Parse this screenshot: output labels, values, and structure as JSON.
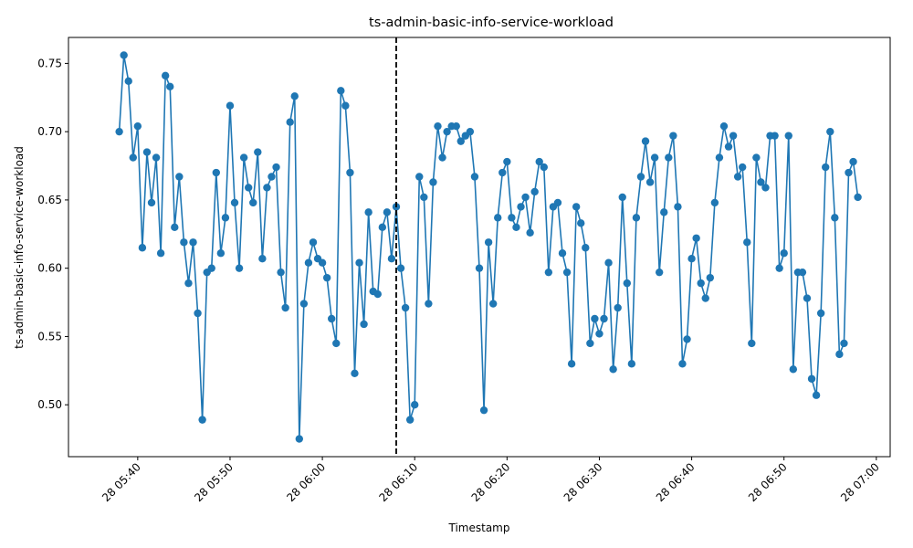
{
  "chart_data": {
    "type": "line",
    "title": "ts-admin-basic-info-service-workload",
    "xlabel": "Timestamp",
    "ylabel": "ts-admin-basic-info-service-workload",
    "ylim": [
      0.462,
      0.769
    ],
    "x_range": [
      "05:32:30",
      "07:01:30"
    ],
    "x_ticks": [
      {
        "time": "05:40",
        "label": "28 05:40"
      },
      {
        "time": "05:50",
        "label": "28 05:50"
      },
      {
        "time": "06:00",
        "label": "28 06:00"
      },
      {
        "time": "06:10",
        "label": "28 06:10"
      },
      {
        "time": "06:20",
        "label": "28 06:20"
      },
      {
        "time": "06:30",
        "label": "28 06:30"
      },
      {
        "time": "06:40",
        "label": "28 06:40"
      },
      {
        "time": "06:50",
        "label": "28 06:50"
      },
      {
        "time": "07:00",
        "label": "28 07:00"
      }
    ],
    "y_ticks": [
      {
        "value": 0.5,
        "label": "0.50"
      },
      {
        "value": 0.55,
        "label": "0.55"
      },
      {
        "value": 0.6,
        "label": "0.60"
      },
      {
        "value": 0.65,
        "label": "0.65"
      },
      {
        "value": 0.7,
        "label": "0.70"
      },
      {
        "value": 0.75,
        "label": "0.75"
      }
    ],
    "vline_time": "06:08",
    "grid": false,
    "legend": false,
    "line_color": "#1f77b4",
    "vline_color": "#000000",
    "series": [
      {
        "x_start": "05:38",
        "step_seconds": 30,
        "values": [
          0.7,
          0.756,
          0.737,
          0.681,
          0.704,
          0.615,
          0.685,
          0.648,
          0.681,
          0.611,
          0.741,
          0.733,
          0.63,
          0.667,
          0.619,
          0.589,
          0.619,
          0.567,
          0.489,
          0.597,
          0.6,
          0.67,
          0.611,
          0.637,
          0.719,
          0.648,
          0.6,
          0.681,
          0.659,
          0.648,
          0.685,
          0.607,
          0.659,
          0.667,
          0.674,
          0.597,
          0.571,
          0.707,
          0.726,
          0.475,
          0.574,
          0.604,
          0.619,
          0.607,
          0.604,
          0.593,
          0.563,
          0.545,
          0.73,
          0.719,
          0.67,
          0.523,
          0.604,
          0.559,
          0.641,
          0.583,
          0.581,
          0.63,
          0.641,
          0.607,
          0.645,
          0.6,
          0.571,
          0.489,
          0.5,
          0.667,
          0.652,
          0.574,
          0.663,
          0.704,
          0.681,
          0.7,
          0.704,
          0.704,
          0.693,
          0.697,
          0.7,
          0.667,
          0.6,
          0.496,
          0.619,
          0.574,
          0.637,
          0.67,
          0.678,
          0.637,
          0.63,
          0.645,
          0.652,
          0.626,
          0.656,
          0.678,
          0.674,
          0.597,
          0.645,
          0.648,
          0.611,
          0.597,
          0.53,
          0.645,
          0.633,
          0.615,
          0.545,
          0.563,
          0.552,
          0.563,
          0.604,
          0.526,
          0.571,
          0.652,
          0.589,
          0.53,
          0.637,
          0.667,
          0.693,
          0.663,
          0.681,
          0.597,
          0.641,
          0.681,
          0.697,
          0.645,
          0.53,
          0.548,
          0.607,
          0.622,
          0.589,
          0.578,
          0.593,
          0.648,
          0.681,
          0.704,
          0.689,
          0.697,
          0.667,
          0.674,
          0.619,
          0.545,
          0.681,
          0.663,
          0.659,
          0.697,
          0.697,
          0.6,
          0.611,
          0.697,
          0.526,
          0.597,
          0.597,
          0.578,
          0.519,
          0.507,
          0.567,
          0.674,
          0.7,
          0.637,
          0.537,
          0.545,
          0.67,
          0.678,
          0.652
        ]
      }
    ]
  }
}
